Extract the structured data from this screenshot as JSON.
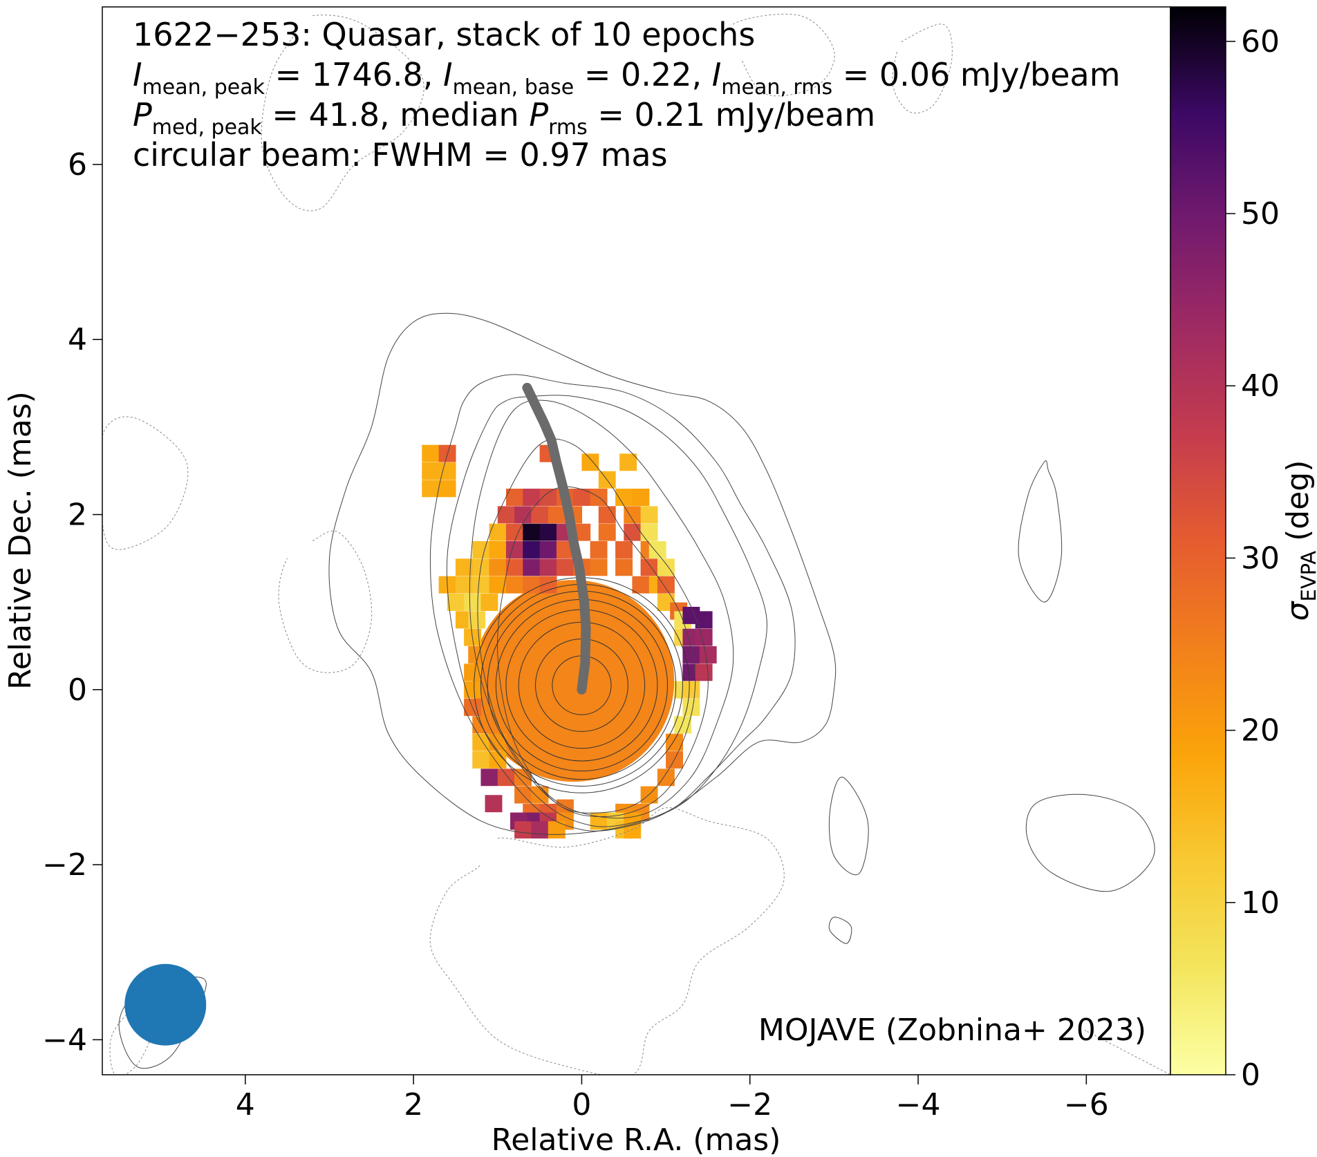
{
  "chart_data": {
    "type": "heatmap",
    "title_lines": [
      "1622−253: Quasar, stack of 10 epochs",
      "I_mean,peak = 1746.8, I_mean,base = 0.22, I_mean,rms = 0.06 mJy/beam",
      "P_med,peak = 41.8, median P_rms = 0.21 mJy/beam",
      "circular beam: FWHM = 0.97 mas"
    ],
    "title_parts": {
      "name": "1622−253: Quasar, stack of 10 epochs",
      "i_peak_sym": "I",
      "i_peak_sub": "mean, peak",
      "i_peak_val": " = 1746.8, ",
      "i_base_sym": "I",
      "i_base_sub": "mean, base",
      "i_base_val": " = 0.22, ",
      "i_rms_sym": "I",
      "i_rms_sub": "mean, rms",
      "i_rms_val": " = 0.06 mJy/beam",
      "p_peak_sym": "P",
      "p_peak_sub": "med, peak",
      "p_peak_val": " = 41.8, median ",
      "p_rms_sym": "P",
      "p_rms_sub": "rms",
      "p_rms_val": " = 0.21 mJy/beam",
      "beam": "circular beam: FWHM = 0.97 mas"
    },
    "credit": "MOJAVE (Zobnina+ 2023)",
    "xlabel": "Relative R.A. (mas)",
    "ylabel": "Relative Dec. (mas)",
    "xlim": [
      5.7,
      -7.0
    ],
    "ylim": [
      -4.4,
      7.8
    ],
    "xticks": [
      4,
      2,
      0,
      -2,
      -4,
      -6
    ],
    "xtick_labels": [
      "4",
      "2",
      "0",
      "−2",
      "−4",
      "−6"
    ],
    "yticks": [
      -4,
      -2,
      0,
      2,
      4,
      6
    ],
    "ytick_labels": [
      "−4",
      "−2",
      "0",
      "2",
      "4",
      "6"
    ],
    "colorbar": {
      "label_sym": "σ",
      "label_sub": "EVPA",
      "label_unit": " (deg)",
      "range": [
        0,
        62
      ],
      "ticks": [
        0,
        10,
        20,
        30,
        40,
        50,
        60
      ],
      "tick_labels": [
        "0",
        "10",
        "20",
        "30",
        "40",
        "50",
        "60"
      ],
      "colormap": "inferno_r"
    },
    "beam": {
      "x": 4.95,
      "y": -3.6,
      "fwhm": 0.97,
      "color": "#1f77b4"
    },
    "ridge_line": {
      "color": "#6b6b6b",
      "x": [
        0.0,
        -0.04,
        -0.05,
        -0.03,
        0.03,
        0.1,
        0.15,
        0.22,
        0.3,
        0.36,
        0.45,
        0.55,
        0.65
      ],
      "y": [
        0.0,
        0.3,
        0.7,
        1.0,
        1.4,
        1.7,
        2.0,
        2.3,
        2.6,
        2.85,
        3.05,
        3.25,
        3.45
      ]
    },
    "core_region": {
      "x": 0.1,
      "y": 0.1,
      "radius": 1.2,
      "value": 24
    },
    "contours": {
      "core_center": [
        0.0,
        0.05
      ],
      "core_radii": [
        0.35,
        0.55,
        0.75,
        0.9,
        1.02,
        1.12,
        1.2,
        1.28
      ],
      "outer": [
        {
          "x": [
            2.5,
            2.8,
            3.0,
            2.9,
            2.5,
            2.3,
            1.9,
            1.2,
            0.5,
            -0.3,
            -1.0,
            -1.6,
            -2.1,
            -2.6,
            -2.9,
            -3.0,
            -3.0,
            -2.8,
            -2.5,
            -2.2,
            -1.9,
            -1.5,
            -1.0,
            -0.3,
            0.4,
            1.1,
            1.6,
            2.0,
            2.3
          ],
          "y": [
            3.0,
            2.3,
            1.5,
            0.7,
            0.2,
            -0.5,
            -1.0,
            -1.5,
            -1.65,
            -1.6,
            -1.4,
            -1.0,
            -0.6,
            -0.6,
            -0.4,
            0.0,
            0.4,
            1.0,
            1.8,
            2.5,
            3.0,
            3.3,
            3.4,
            3.6,
            3.9,
            4.2,
            4.3,
            4.2,
            3.8
          ]
        },
        {
          "x": [
            1.5,
            1.7,
            1.8,
            1.7,
            1.3,
            0.6,
            0.0,
            -0.6,
            -1.1,
            -1.5,
            -1.9,
            -2.2,
            -2.5,
            -2.5,
            -2.2,
            -1.9,
            -1.6,
            -1.1,
            -0.5,
            0.2,
            0.8,
            1.2,
            1.4
          ],
          "y": [
            3.0,
            2.3,
            1.5,
            0.6,
            -0.4,
            -1.3,
            -1.6,
            -1.55,
            -1.35,
            -1.0,
            -0.6,
            -0.3,
            0.2,
            0.9,
            1.6,
            2.1,
            2.6,
            3.1,
            3.4,
            3.5,
            3.6,
            3.5,
            3.3
          ]
        },
        {
          "x": [
            1.1,
            1.4,
            1.6,
            1.5,
            1.2,
            0.5,
            -0.1,
            -0.7,
            -1.2,
            -1.6,
            -1.9,
            -2.1,
            -2.2,
            -2.0,
            -1.7,
            -1.4,
            -1.0,
            -0.5,
            0.1,
            0.6,
            0.9
          ],
          "y": [
            3.1,
            2.4,
            1.5,
            0.5,
            -0.4,
            -1.25,
            -1.55,
            -1.5,
            -1.3,
            -0.9,
            -0.4,
            0.2,
            0.8,
            1.4,
            2.0,
            2.5,
            2.9,
            3.2,
            3.35,
            3.35,
            3.3
          ]
        },
        {
          "x": [
            0.8,
            1.1,
            1.3,
            1.3,
            1.0,
            0.4,
            -0.2,
            -0.8,
            -1.3,
            -1.6,
            -1.8,
            -1.7,
            -1.4,
            -1.0,
            -0.6,
            -0.1,
            0.4
          ],
          "y": [
            3.2,
            2.6,
            1.7,
            0.6,
            -0.4,
            -1.2,
            -1.45,
            -1.4,
            -1.0,
            -0.4,
            0.3,
            1.0,
            1.6,
            2.2,
            2.7,
            3.1,
            3.3
          ]
        },
        {
          "x": [
            0.5,
            0.9,
            1.2,
            1.2,
            0.9,
            0.3,
            -0.3,
            -0.9,
            -1.3,
            -1.5,
            -1.4,
            -1.1,
            -0.7,
            -0.3,
            0.1
          ],
          "y": [
            2.8,
            2.2,
            1.4,
            0.4,
            -0.6,
            -1.3,
            -1.45,
            -1.25,
            -0.7,
            0.0,
            0.7,
            1.3,
            1.8,
            2.4,
            2.8
          ]
        },
        {
          "x": [
            0.3,
            0.7,
            0.9,
            1.0,
            0.8,
            0.3,
            -0.3,
            -0.8,
            -1.2,
            -1.35,
            -1.2,
            -0.9,
            -0.5,
            -0.2
          ],
          "y": [
            2.3,
            1.9,
            1.3,
            0.4,
            -0.6,
            -1.3,
            -1.4,
            -1.2,
            -0.6,
            0.1,
            0.8,
            1.3,
            1.8,
            2.2
          ]
        }
      ],
      "islands": [
        {
          "x": [
            -5.5,
            -5.3,
            -5.2,
            -5.5,
            -5.7,
            -5.65,
            -5.55
          ],
          "y": [
            2.6,
            2.2,
            1.5,
            1.0,
            1.5,
            2.2,
            2.5
          ]
        },
        {
          "x": [
            -3.1,
            -3.4,
            -3.3,
            -3.0,
            -2.95
          ],
          "y": [
            -1.0,
            -1.5,
            -2.1,
            -1.9,
            -1.4
          ]
        },
        {
          "x": [
            -5.4,
            -6.0,
            -6.6,
            -6.8,
            -6.3,
            -5.6,
            -5.3
          ],
          "y": [
            -1.3,
            -1.2,
            -1.4,
            -1.9,
            -2.3,
            -2.1,
            -1.7
          ]
        },
        {
          "x": [
            -3.0,
            -3.2,
            -3.15,
            -2.95
          ],
          "y": [
            -2.6,
            -2.7,
            -2.9,
            -2.75
          ]
        },
        {
          "x": [
            4.5,
            5.2,
            5.5,
            5.3,
            4.9,
            4.6
          ],
          "y": [
            -3.3,
            -3.4,
            -3.8,
            -4.3,
            -4.2,
            -3.7
          ]
        }
      ],
      "dashed": [
        {
          "x": [
            3.2,
            2.6,
            1.9,
            2.1,
            2.7,
            3.1,
            3.5,
            3.8,
            3.7,
            3.4
          ],
          "y": [
            7.7,
            7.6,
            7.0,
            6.4,
            6.0,
            5.5,
            5.6,
            6.2,
            7.0,
            7.5
          ]
        },
        {
          "x": [
            -1.8,
            -2.6,
            -3.0,
            -2.8,
            -2.2,
            -1.9
          ],
          "y": [
            7.6,
            7.7,
            7.3,
            6.9,
            6.8,
            7.2
          ]
        },
        {
          "x": [
            -3.8,
            -4.3,
            -4.4,
            -4.2,
            -3.9,
            -3.7,
            -3.75
          ],
          "y": [
            7.4,
            7.6,
            7.2,
            6.7,
            6.6,
            6.9,
            7.3
          ]
        },
        {
          "x": [
            5.7,
            5.3,
            4.7,
            4.9,
            5.5,
            5.7
          ],
          "y": [
            2.9,
            3.1,
            2.6,
            1.9,
            1.6,
            1.9
          ]
        },
        {
          "x": [
            3.2,
            2.9,
            2.6,
            2.5,
            2.7,
            3.1,
            3.4,
            3.6,
            3.5
          ],
          "y": [
            1.7,
            1.8,
            1.4,
            0.8,
            0.3,
            0.2,
            0.4,
            1.0,
            1.5
          ]
        },
        {
          "x": [
            1.0,
            0.2,
            -0.6,
            -1.0,
            -1.5,
            -2.2,
            -2.4,
            -2.0,
            -1.4,
            -1.2,
            -0.8,
            -0.6,
            0.2,
            1.0,
            1.5,
            1.8,
            1.6,
            1.2
          ],
          "y": [
            -1.7,
            -1.8,
            -1.6,
            -1.35,
            -1.5,
            -1.7,
            -2.2,
            -2.7,
            -3.1,
            -3.6,
            -3.9,
            -4.4,
            -4.3,
            -4.0,
            -3.4,
            -2.9,
            -2.3,
            -2.0
          ]
        },
        {
          "x": [
            -6.0,
            -6.4,
            -6.8,
            -7.0
          ],
          "y": [
            -3.9,
            -4.1,
            -4.3,
            -4.4
          ]
        },
        {
          "x": [
            5.1,
            5.4,
            5.6,
            5.55,
            5.3,
            5.1
          ],
          "y": [
            -3.5,
            -3.7,
            -4.0,
            -4.4,
            -4.3,
            -3.9
          ]
        }
      ]
    },
    "evpa_pixels": [
      [
        1.8,
        2.7,
        18
      ],
      [
        1.6,
        2.7,
        31
      ],
      [
        1.8,
        2.5,
        17
      ],
      [
        1.6,
        2.5,
        17
      ],
      [
        1.8,
        2.3,
        17
      ],
      [
        1.6,
        2.3,
        18
      ],
      [
        0.4,
        2.7,
        31
      ],
      [
        -0.1,
        2.6,
        18
      ],
      [
        -0.3,
        2.4,
        16
      ],
      [
        -0.55,
        2.6,
        16
      ],
      [
        0.8,
        2.2,
        30
      ],
      [
        0.6,
        2.2,
        37
      ],
      [
        0.4,
        2.2,
        34
      ],
      [
        0.2,
        2.2,
        30
      ],
      [
        0.0,
        2.2,
        32
      ],
      [
        -0.2,
        2.2,
        28
      ],
      [
        -0.5,
        2.2,
        18
      ],
      [
        -0.7,
        2.2,
        19
      ],
      [
        0.9,
        2.0,
        34
      ],
      [
        0.7,
        2.0,
        40
      ],
      [
        0.5,
        2.0,
        33
      ],
      [
        0.3,
        2.0,
        28
      ],
      [
        0.1,
        2.0,
        27
      ],
      [
        -0.3,
        2.0,
        30
      ],
      [
        -0.6,
        2.0,
        24
      ],
      [
        -0.8,
        2.0,
        12
      ],
      [
        1.0,
        1.8,
        16
      ],
      [
        0.8,
        1.8,
        32
      ],
      [
        0.6,
        1.8,
        60
      ],
      [
        0.4,
        1.8,
        58
      ],
      [
        0.2,
        1.8,
        41
      ],
      [
        0.0,
        1.8,
        29
      ],
      [
        -0.3,
        1.8,
        27
      ],
      [
        -0.6,
        1.8,
        33
      ],
      [
        -0.8,
        1.8,
        7
      ],
      [
        1.2,
        1.6,
        14
      ],
      [
        1.0,
        1.6,
        18
      ],
      [
        0.8,
        1.6,
        40
      ],
      [
        0.6,
        1.6,
        56
      ],
      [
        0.4,
        1.6,
        50
      ],
      [
        0.2,
        1.6,
        30
      ],
      [
        -0.2,
        1.6,
        28
      ],
      [
        -0.5,
        1.6,
        30
      ],
      [
        -0.8,
        1.6,
        25
      ],
      [
        -0.9,
        1.6,
        6
      ],
      [
        1.4,
        1.4,
        16
      ],
      [
        1.2,
        1.4,
        14
      ],
      [
        1.0,
        1.4,
        22
      ],
      [
        0.8,
        1.4,
        31
      ],
      [
        0.6,
        1.4,
        48
      ],
      [
        0.4,
        1.4,
        40
      ],
      [
        0.2,
        1.4,
        33
      ],
      [
        0.0,
        1.4,
        28
      ],
      [
        -0.2,
        1.4,
        26
      ],
      [
        -0.5,
        1.4,
        27
      ],
      [
        -0.8,
        1.4,
        31
      ],
      [
        -1.0,
        1.4,
        8
      ],
      [
        1.6,
        1.2,
        17
      ],
      [
        1.4,
        1.2,
        14
      ],
      [
        1.2,
        1.2,
        13
      ],
      [
        1.0,
        1.2,
        19
      ],
      [
        0.8,
        1.2,
        24
      ],
      [
        0.6,
        1.2,
        27
      ],
      [
        0.4,
        1.2,
        30
      ],
      [
        -0.7,
        1.2,
        28
      ],
      [
        -0.9,
        1.2,
        17
      ],
      [
        -1.0,
        1.2,
        30
      ],
      [
        1.5,
        1.0,
        12
      ],
      [
        1.3,
        1.0,
        8
      ],
      [
        1.1,
        1.0,
        16
      ],
      [
        -1.0,
        1.0,
        14
      ],
      [
        -1.15,
        0.9,
        28
      ],
      [
        1.4,
        0.8,
        16
      ],
      [
        1.25,
        0.8,
        10
      ],
      [
        -1.2,
        0.8,
        7
      ],
      [
        -1.3,
        0.85,
        52
      ],
      [
        -1.45,
        0.8,
        52
      ],
      [
        1.3,
        0.6,
        16
      ],
      [
        1.25,
        0.4,
        22
      ],
      [
        -1.2,
        0.6,
        10
      ],
      [
        -1.3,
        0.6,
        45
      ],
      [
        -1.45,
        0.6,
        44
      ],
      [
        1.3,
        0.2,
        20
      ],
      [
        1.3,
        0.0,
        19
      ],
      [
        -1.3,
        0.4,
        49
      ],
      [
        -1.5,
        0.4,
        42
      ],
      [
        -1.3,
        0.2,
        50
      ],
      [
        -1.45,
        0.2,
        39
      ],
      [
        1.3,
        -0.2,
        28
      ],
      [
        1.2,
        -0.4,
        24
      ],
      [
        -1.2,
        0.0,
        8
      ],
      [
        -1.3,
        0.0,
        12
      ],
      [
        -1.3,
        -0.2,
        7
      ],
      [
        -1.2,
        -0.4,
        6
      ],
      [
        1.2,
        -0.6,
        16
      ],
      [
        1.0,
        -0.6,
        21
      ],
      [
        -1.1,
        -0.6,
        23
      ],
      [
        1.2,
        -0.8,
        14
      ],
      [
        1.0,
        -0.8,
        18
      ],
      [
        -1.1,
        -0.8,
        26
      ],
      [
        1.1,
        -1.0,
        46
      ],
      [
        0.9,
        -1.0,
        33
      ],
      [
        0.7,
        -1.0,
        25
      ],
      [
        -1.0,
        -1.0,
        24
      ],
      [
        0.7,
        -1.2,
        26
      ],
      [
        0.5,
        -1.2,
        23
      ],
      [
        -0.8,
        -1.2,
        22
      ],
      [
        1.05,
        -1.3,
        40
      ],
      [
        0.6,
        -1.4,
        28
      ],
      [
        0.4,
        -1.4,
        31
      ],
      [
        0.2,
        -1.35,
        26
      ],
      [
        -0.5,
        -1.4,
        22
      ],
      [
        -0.7,
        -1.4,
        23
      ],
      [
        0.75,
        -1.5,
        46
      ],
      [
        0.55,
        -1.5,
        48
      ],
      [
        0.4,
        -1.5,
        38
      ],
      [
        0.2,
        -1.5,
        22
      ],
      [
        -0.2,
        -1.5,
        16
      ],
      [
        -0.4,
        -1.5,
        12
      ],
      [
        -0.6,
        -1.5,
        19
      ],
      [
        0.7,
        -1.6,
        37
      ],
      [
        0.5,
        -1.6,
        42
      ],
      [
        0.3,
        -1.6,
        20
      ],
      [
        -0.5,
        -1.6,
        14
      ],
      [
        -0.6,
        -1.6,
        18
      ]
    ]
  }
}
